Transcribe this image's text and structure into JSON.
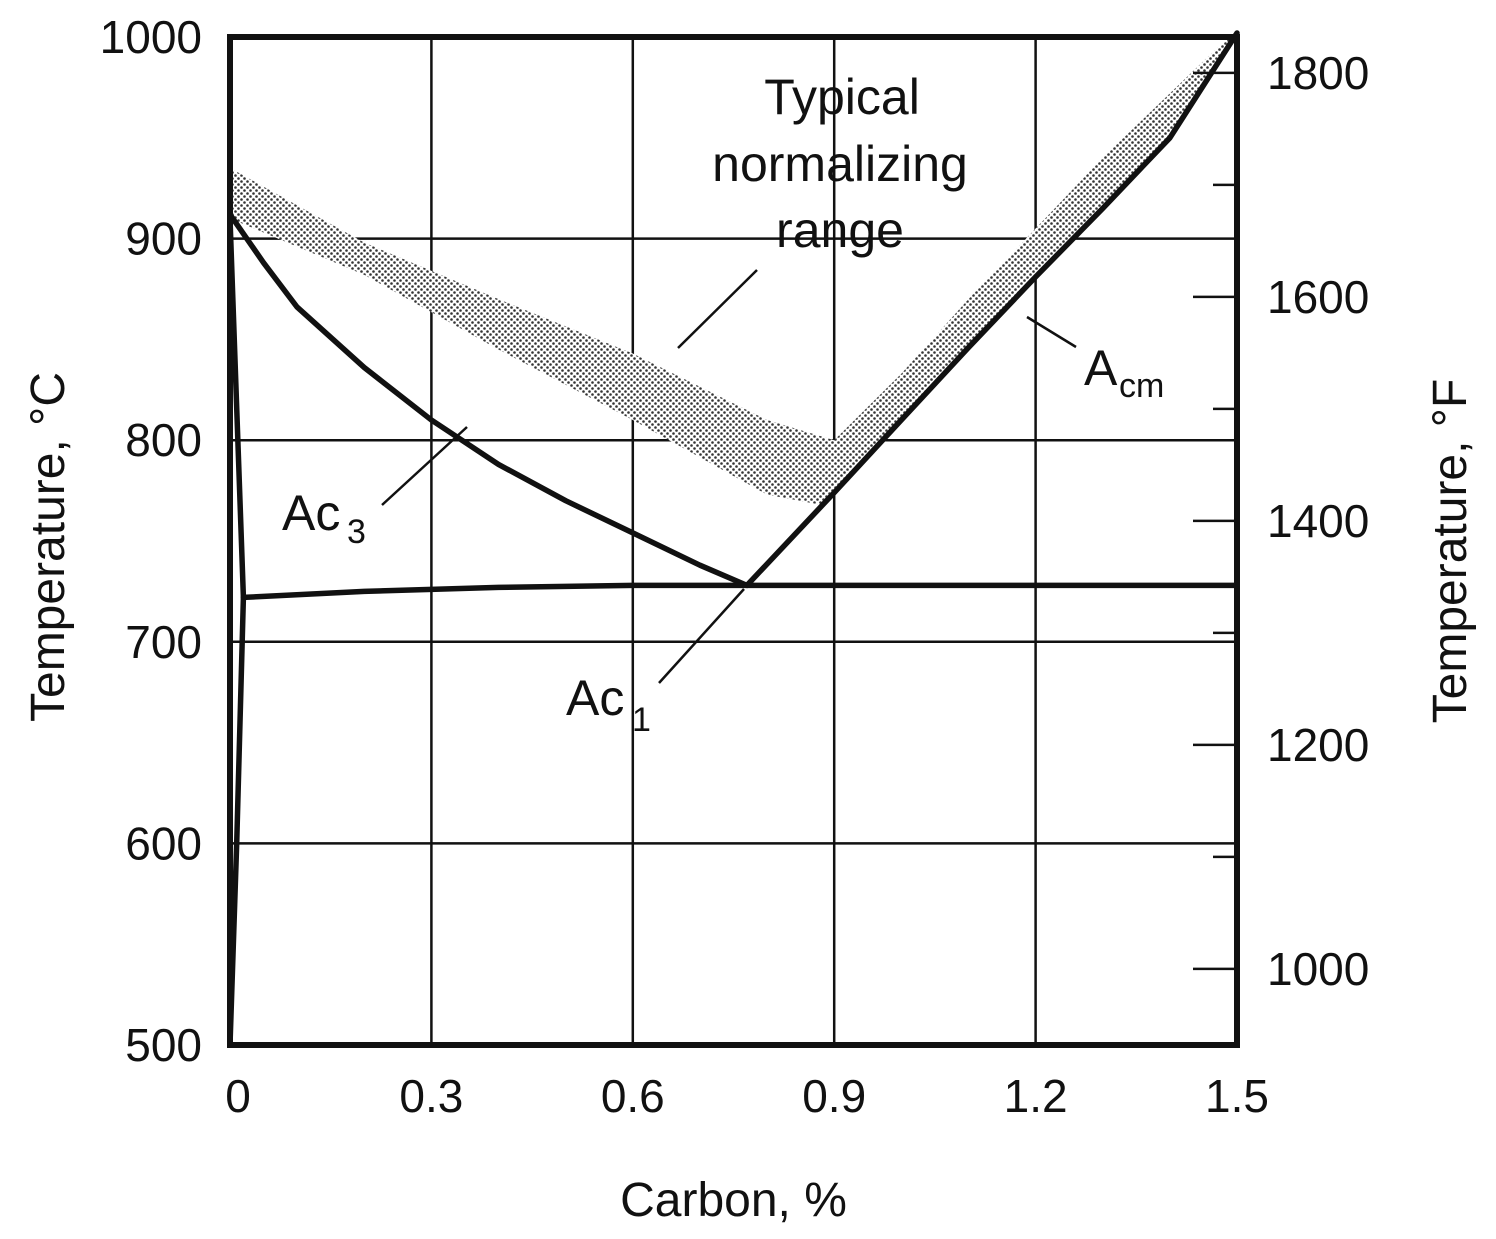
{
  "chart_data": {
    "type": "line",
    "title": "",
    "xlabel": "Carbon, %",
    "ylabel": "Temperature, °C",
    "ylabel_right": "Temperature, °F",
    "xlim": [
      0,
      1.5
    ],
    "ylim": [
      500,
      1000
    ],
    "x_ticks": [
      0,
      0.3,
      0.6,
      0.9,
      1.2,
      1.5
    ],
    "x_tick_labels": [
      "0",
      "0.3",
      "0.6",
      "0.9",
      "1.2",
      "1.5"
    ],
    "y_ticks": [
      500,
      600,
      700,
      800,
      900,
      1000
    ],
    "y_tick_labels": [
      "500",
      "600",
      "700",
      "800",
      "900",
      "1000"
    ],
    "y_right_ticks_F": [
      1000,
      1200,
      1400,
      1600,
      1800
    ],
    "y_right_tick_labels": [
      "1000",
      "1200",
      "1400",
      "1600",
      "1800"
    ],
    "y_right_minor_ticks_F": [
      1100,
      1300,
      1500,
      1700
    ],
    "grid": true,
    "series": [
      {
        "name": "Ac3",
        "x": [
          0,
          0.05,
          0.1,
          0.2,
          0.3,
          0.4,
          0.5,
          0.6,
          0.7,
          0.77
        ],
        "y": [
          912,
          888,
          866,
          836,
          810,
          788,
          770,
          754,
          738,
          728
        ]
      },
      {
        "name": "Acm",
        "x": [
          0.77,
          0.9,
          1.0,
          1.1,
          1.2,
          1.3,
          1.4,
          1.5
        ],
        "y": [
          728,
          774,
          810,
          846,
          881,
          915,
          950,
          1002
        ]
      },
      {
        "name": "Ac1",
        "x": [
          0.02,
          0.2,
          0.4,
          0.6,
          0.77,
          0.9,
          1.2,
          1.5
        ],
        "y": [
          722,
          725,
          727,
          728,
          728,
          728,
          728,
          728
        ]
      },
      {
        "name": "ferrite-boundary-left",
        "x": [
          0,
          0.02,
          0.01,
          0
        ],
        "y": [
          910,
          722,
          600,
          500
        ]
      }
    ],
    "normalizing_band": {
      "name": "Typical normalizing range",
      "upper": {
        "x": [
          0,
          0.2,
          0.4,
          0.6,
          0.8,
          0.9,
          1.0,
          1.1,
          1.2,
          1.3,
          1.4,
          1.5
        ],
        "y": [
          935,
          898,
          870,
          843,
          810,
          800,
          833,
          870,
          905,
          940,
          972,
          1004
        ]
      },
      "lower": {
        "x": [
          0,
          0.2,
          0.4,
          0.6,
          0.8,
          0.88,
          0.95,
          1.1,
          1.2,
          1.3,
          1.4,
          1.5
        ],
        "y": [
          910,
          882,
          845,
          810,
          773,
          768,
          792,
          846,
          881,
          915,
          950,
          1002
        ]
      }
    },
    "annotations": [
      {
        "text": "Typical",
        "line": 1
      },
      {
        "text": "normalizing",
        "line": 2
      },
      {
        "text": "range",
        "line": 3
      },
      {
        "main": "Ac",
        "sub": "3"
      },
      {
        "main": "Ac",
        "sub": "1"
      },
      {
        "main": "A",
        "sub": "cm"
      }
    ]
  }
}
